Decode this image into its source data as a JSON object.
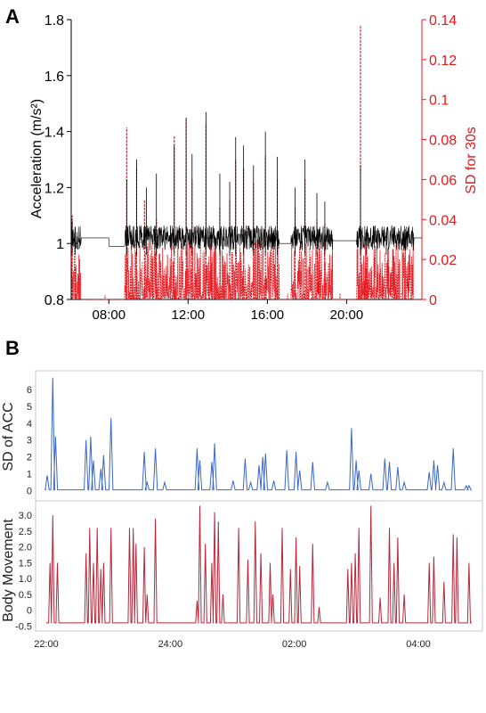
{
  "panel_labels": {
    "a": "A",
    "b": "B"
  },
  "colors": {
    "black": "#000000",
    "red": "#e8161d",
    "blue": "#3a67c8",
    "darkred": "#b5283b",
    "frame": "#c8c8c8"
  },
  "chart_data": [
    {
      "id": "A",
      "type": "line",
      "xlabel": "",
      "ylabel_left": "Acceleration (m/s²)",
      "ylabel_right": "SD for 30s",
      "x_ticks": [
        "08:00",
        "12:00",
        "16:00",
        "20:00"
      ],
      "x_range_hours": [
        6.1,
        23.8
      ],
      "ylim_left": [
        0.8,
        1.8
      ],
      "y_ticks_left": [
        "0.8",
        "1",
        "1.2",
        "1.4",
        "1.6",
        "1.8"
      ],
      "ylim_right": [
        0,
        0.14
      ],
      "y_ticks_right": [
        "0",
        "0.02",
        "0.04",
        "0.06",
        "0.08",
        "0.1",
        "0.12",
        "0.14"
      ],
      "series": [
        {
          "axis": "left",
          "color": "#000000",
          "baseline": 1.02,
          "spikes": [
            {
              "x": 6.15,
              "y": 1.08
            },
            {
              "x": 6.3,
              "y": 1.06
            },
            {
              "x": 8.9,
              "y": 1.23
            },
            {
              "x": 9.4,
              "y": 1.3
            },
            {
              "x": 9.9,
              "y": 1.2
            },
            {
              "x": 10.4,
              "y": 1.25
            },
            {
              "x": 11.3,
              "y": 1.35
            },
            {
              "x": 11.9,
              "y": 1.45
            },
            {
              "x": 12.2,
              "y": 1.32
            },
            {
              "x": 12.9,
              "y": 1.47
            },
            {
              "x": 13.6,
              "y": 1.25
            },
            {
              "x": 14.1,
              "y": 1.22
            },
            {
              "x": 14.4,
              "y": 1.38
            },
            {
              "x": 14.8,
              "y": 1.35
            },
            {
              "x": 15.3,
              "y": 1.28
            },
            {
              "x": 15.9,
              "y": 1.4
            },
            {
              "x": 16.5,
              "y": 1.31
            },
            {
              "x": 17.4,
              "y": 1.2
            },
            {
              "x": 17.9,
              "y": 1.3
            },
            {
              "x": 18.5,
              "y": 1.18
            },
            {
              "x": 18.9,
              "y": 1.15
            },
            {
              "x": 20.7,
              "y": 1.28
            },
            {
              "x": 21.0,
              "y": 1.05
            },
            {
              "x": 22.0,
              "y": 1.04
            }
          ]
        },
        {
          "axis": "right",
          "color": "#e8161d",
          "spikes": [
            {
              "x": 6.15,
              "y": 0.042
            },
            {
              "x": 6.3,
              "y": 0.016
            },
            {
              "x": 8.9,
              "y": 0.086
            },
            {
              "x": 9.4,
              "y": 0.066
            },
            {
              "x": 9.8,
              "y": 0.05
            },
            {
              "x": 10.4,
              "y": 0.04
            },
            {
              "x": 11.3,
              "y": 0.082
            },
            {
              "x": 11.9,
              "y": 0.09
            },
            {
              "x": 12.2,
              "y": 0.06
            },
            {
              "x": 12.9,
              "y": 0.088
            },
            {
              "x": 13.6,
              "y": 0.046
            },
            {
              "x": 14.1,
              "y": 0.05
            },
            {
              "x": 14.4,
              "y": 0.07
            },
            {
              "x": 14.8,
              "y": 0.066
            },
            {
              "x": 15.3,
              "y": 0.058
            },
            {
              "x": 15.9,
              "y": 0.072
            },
            {
              "x": 16.5,
              "y": 0.06
            },
            {
              "x": 17.4,
              "y": 0.046
            },
            {
              "x": 17.9,
              "y": 0.06
            },
            {
              "x": 18.5,
              "y": 0.04
            },
            {
              "x": 18.9,
              "y": 0.038
            },
            {
              "x": 20.7,
              "y": 0.137
            },
            {
              "x": 21.0,
              "y": 0.016
            },
            {
              "x": 21.8,
              "y": 0.012
            },
            {
              "x": 22.4,
              "y": 0.01
            }
          ]
        }
      ]
    },
    {
      "id": "B-top",
      "type": "line",
      "ylabel": "SD of ACC",
      "ylim": [
        -0.5,
        7
      ],
      "y_ticks": [
        "0",
        "1",
        "2",
        "3",
        "4",
        "5",
        "6"
      ],
      "series": [
        {
          "color": "#3a67c8",
          "baseline": 0,
          "peaks": [
            {
              "x": 0.05,
              "y": 0.9
            },
            {
              "x": 0.35,
              "y": 6.7
            },
            {
              "x": 0.5,
              "y": 3.2
            },
            {
              "x": 2.15,
              "y": 3.0
            },
            {
              "x": 2.4,
              "y": 3.2
            },
            {
              "x": 2.55,
              "y": 1.8
            },
            {
              "x": 2.95,
              "y": 1.3
            },
            {
              "x": 3.1,
              "y": 2.1
            },
            {
              "x": 3.5,
              "y": 4.3
            },
            {
              "x": 5.3,
              "y": 2.3
            },
            {
              "x": 5.45,
              "y": 0.5
            },
            {
              "x": 5.9,
              "y": 2.5
            },
            {
              "x": 6.4,
              "y": 0.5
            },
            {
              "x": 8.15,
              "y": 2.5
            },
            {
              "x": 8.3,
              "y": 1.8
            },
            {
              "x": 8.95,
              "y": 1.7
            },
            {
              "x": 9.1,
              "y": 2.8
            },
            {
              "x": 10.1,
              "y": 0.6
            },
            {
              "x": 10.75,
              "y": 1.9
            },
            {
              "x": 11.05,
              "y": 0.5
            },
            {
              "x": 11.5,
              "y": 1.5
            },
            {
              "x": 11.7,
              "y": 2.0
            },
            {
              "x": 11.85,
              "y": 2.2
            },
            {
              "x": 12.3,
              "y": 0.6
            },
            {
              "x": 13.0,
              "y": 2.4
            },
            {
              "x": 13.5,
              "y": 2.3
            },
            {
              "x": 13.7,
              "y": 1.2
            },
            {
              "x": 14.4,
              "y": 1.7
            },
            {
              "x": 15.2,
              "y": 0.5
            },
            {
              "x": 16.5,
              "y": 3.7
            },
            {
              "x": 16.75,
              "y": 1.8
            },
            {
              "x": 16.9,
              "y": 1.2
            },
            {
              "x": 17.55,
              "y": 1.0
            },
            {
              "x": 18.3,
              "y": 1.9
            },
            {
              "x": 18.55,
              "y": 1.7
            },
            {
              "x": 19.0,
              "y": 1.4
            },
            {
              "x": 19.35,
              "y": 0.5
            },
            {
              "x": 20.7,
              "y": 1.1
            },
            {
              "x": 20.95,
              "y": 1.8
            },
            {
              "x": 21.15,
              "y": 1.5
            },
            {
              "x": 21.5,
              "y": 0.5
            },
            {
              "x": 22.0,
              "y": 2.5
            },
            {
              "x": 22.7,
              "y": 0.3
            },
            {
              "x": 22.85,
              "y": 0.3
            }
          ]
        }
      ]
    },
    {
      "id": "B-bottom",
      "type": "line",
      "ylabel": "Body Movement",
      "ylim": [
        -0.6,
        3.4
      ],
      "y_ticks": [
        "-0.5",
        "0",
        "0.5",
        "1.0",
        "1.5",
        "2.0",
        "2.5",
        "3.0"
      ],
      "x_ticks": [
        "22:00",
        "24:00",
        "02:00",
        "04:00"
      ],
      "series": [
        {
          "color": "#b5283b",
          "baseline": -0.4,
          "peaks": [
            {
              "x": 0.2,
              "y": 1.5
            },
            {
              "x": 0.35,
              "y": 3.0
            },
            {
              "x": 0.6,
              "y": 1.5
            },
            {
              "x": 2.15,
              "y": 1.8
            },
            {
              "x": 2.35,
              "y": 2.6
            },
            {
              "x": 2.55,
              "y": 1.5
            },
            {
              "x": 2.75,
              "y": 2.6
            },
            {
              "x": 2.95,
              "y": 1.3
            },
            {
              "x": 3.1,
              "y": 1.5
            },
            {
              "x": 3.5,
              "y": 2.6
            },
            {
              "x": 4.5,
              "y": 2.6
            },
            {
              "x": 4.7,
              "y": 2.6
            },
            {
              "x": 4.85,
              "y": 2.1
            },
            {
              "x": 5.3,
              "y": 2.0
            },
            {
              "x": 5.45,
              "y": 0.5
            },
            {
              "x": 5.9,
              "y": 2.9
            },
            {
              "x": 8.15,
              "y": 0.3
            },
            {
              "x": 8.3,
              "y": 3.3
            },
            {
              "x": 8.6,
              "y": 2.1
            },
            {
              "x": 8.95,
              "y": 1.5
            },
            {
              "x": 9.1,
              "y": 3.1
            },
            {
              "x": 9.3,
              "y": 2.8
            },
            {
              "x": 9.55,
              "y": 0.5
            },
            {
              "x": 10.4,
              "y": 2.6
            },
            {
              "x": 10.9,
              "y": 1.6
            },
            {
              "x": 11.3,
              "y": 2.8
            },
            {
              "x": 11.6,
              "y": 1.8
            },
            {
              "x": 12.1,
              "y": 1.5
            },
            {
              "x": 12.25,
              "y": 0.5
            },
            {
              "x": 12.75,
              "y": 2.6
            },
            {
              "x": 13.2,
              "y": 1.3
            },
            {
              "x": 13.5,
              "y": 2.3
            },
            {
              "x": 13.7,
              "y": 1.4
            },
            {
              "x": 14.4,
              "y": 2.1
            },
            {
              "x": 14.75,
              "y": 0.1
            },
            {
              "x": 16.3,
              "y": 1.3
            },
            {
              "x": 16.5,
              "y": 1.5
            },
            {
              "x": 16.7,
              "y": 1.8
            },
            {
              "x": 16.9,
              "y": 2.6
            },
            {
              "x": 17.55,
              "y": 3.3
            },
            {
              "x": 18.05,
              "y": 0.4
            },
            {
              "x": 18.55,
              "y": 2.6
            },
            {
              "x": 18.8,
              "y": 1.5
            },
            {
              "x": 19.0,
              "y": 2.3
            },
            {
              "x": 19.35,
              "y": 0.5
            },
            {
              "x": 20.7,
              "y": 1.5
            },
            {
              "x": 20.95,
              "y": 1.7
            },
            {
              "x": 21.5,
              "y": 0.9
            },
            {
              "x": 22.0,
              "y": 2.4
            },
            {
              "x": 22.2,
              "y": 2.3
            },
            {
              "x": 22.85,
              "y": 1.5
            }
          ]
        }
      ]
    }
  ]
}
